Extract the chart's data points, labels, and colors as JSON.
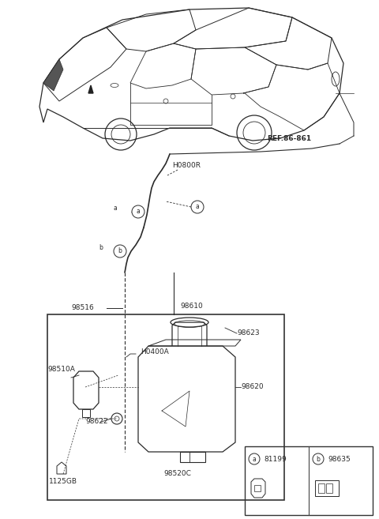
{
  "bg_color": "#ffffff",
  "lc": "#2a2a2a",
  "lc2": "#444444",
  "fs": 6.5,
  "fs_sm": 5.5,
  "labels": {
    "ref": "REF.86-861",
    "h0800r": "H0800R",
    "h0400a": "H0400A",
    "p98516": "98516",
    "p98610": "98610",
    "p98510a": "98510A",
    "p98622": "98622",
    "p98620": "98620",
    "p98623": "98623",
    "p98520c": "98520C",
    "p1125gb": "1125GB",
    "p81199": "81199",
    "p98635": "98635",
    "a_lbl": "a",
    "b_lbl": "b"
  }
}
